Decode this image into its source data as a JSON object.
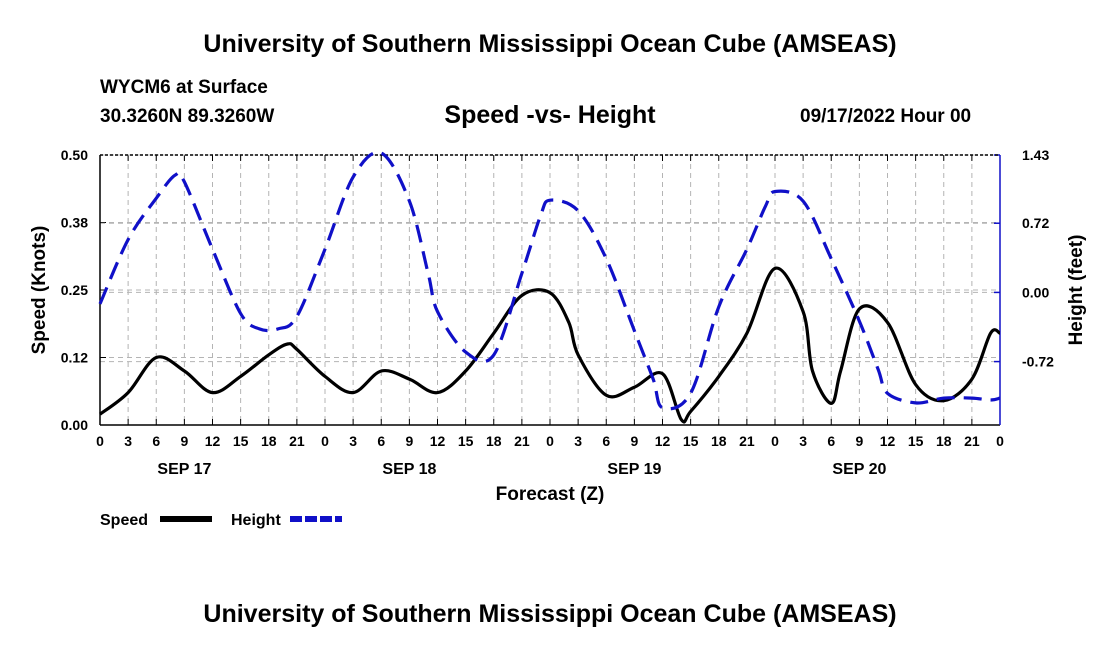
{
  "header": {
    "title": "University of Southern Mississippi Ocean Cube (AMSEAS)",
    "station": "WYCM6 at Surface",
    "coords": "30.3260N  89.3260W",
    "subtitle": "Speed -vs- Height",
    "datetime": "09/17/2022 Hour 00"
  },
  "footer": {
    "title": "University of Southern Mississippi Ocean Cube (AMSEAS)"
  },
  "colors": {
    "speed": "#000000",
    "height": "#1010c8",
    "grid": "#b4b4b4"
  },
  "chart_data": {
    "type": "line",
    "title": "Speed -vs- Height",
    "xlabel": "Forecast (Z)",
    "ylabel": "Speed (Knots)",
    "y2label": "Height (feet)",
    "xlim": [
      0,
      96
    ],
    "ylim": [
      0,
      0.5
    ],
    "y2lim": [
      -1.38,
      1.43
    ],
    "x_ticks": [
      0,
      3,
      6,
      9,
      12,
      15,
      18,
      21,
      24,
      27,
      30,
      33,
      36,
      39,
      42,
      45,
      48,
      51,
      54,
      57,
      60,
      63,
      66,
      69,
      72,
      75,
      78,
      81,
      84,
      87,
      90,
      93,
      96
    ],
    "x_tick_labels": [
      "0",
      "3",
      "6",
      "9",
      "12",
      "15",
      "18",
      "21",
      "0",
      "3",
      "6",
      "9",
      "12",
      "15",
      "18",
      "21",
      "0",
      "3",
      "6",
      "9",
      "12",
      "15",
      "18",
      "21",
      "0",
      "3",
      "6",
      "9",
      "12",
      "15",
      "18",
      "21",
      "0"
    ],
    "y_ticks": [
      0.0,
      0.125,
      0.25,
      0.375,
      0.5
    ],
    "y_tick_labels": [
      "0.00",
      "0.12",
      "0.25",
      "0.38",
      "0.50"
    ],
    "y2_ticks": [
      1.43,
      0.72,
      0.0,
      -0.72
    ],
    "y2_tick_labels": [
      "1.43",
      "0.72",
      "0.00",
      "-0.72"
    ],
    "day_labels": [
      {
        "x": 9,
        "label": "SEP 17"
      },
      {
        "x": 33,
        "label": "SEP 18"
      },
      {
        "x": 57,
        "label": "SEP 19"
      },
      {
        "x": 81,
        "label": "SEP 20"
      }
    ],
    "series": [
      {
        "name": "Speed",
        "axis": "left",
        "style": "solid",
        "x": [
          0,
          3,
          6,
          9,
          12,
          15,
          18,
          20,
          21,
          24,
          27,
          30,
          33,
          36,
          39,
          42,
          45,
          48,
          50,
          51,
          54,
          57,
          60,
          62,
          63,
          66,
          69,
          72,
          75,
          76,
          78,
          79,
          81,
          84,
          87,
          90,
          93,
          95,
          96
        ],
        "values": [
          0.02,
          0.06,
          0.125,
          0.1,
          0.06,
          0.09,
          0.13,
          0.15,
          0.14,
          0.09,
          0.06,
          0.1,
          0.085,
          0.06,
          0.1,
          0.17,
          0.24,
          0.245,
          0.19,
          0.13,
          0.055,
          0.07,
          0.095,
          0.01,
          0.025,
          0.09,
          0.17,
          0.29,
          0.21,
          0.1,
          0.04,
          0.1,
          0.215,
          0.19,
          0.075,
          0.045,
          0.085,
          0.17,
          0.17
        ]
      },
      {
        "name": "Height",
        "axis": "right",
        "style": "dashed",
        "x": [
          0,
          3,
          6,
          8,
          9,
          12,
          15,
          17,
          19,
          21,
          24,
          27,
          30,
          33,
          35,
          36,
          39,
          42,
          45,
          47,
          48,
          51,
          54,
          57,
          59,
          60,
          63,
          66,
          69,
          71,
          72,
          75,
          78,
          81,
          83,
          84,
          87,
          90,
          93,
          95,
          96
        ],
        "values": [
          -0.12,
          0.55,
          0.98,
          1.22,
          1.15,
          0.45,
          -0.22,
          -0.38,
          -0.38,
          -0.25,
          0.45,
          1.2,
          1.45,
          0.95,
          0.2,
          -0.2,
          -0.62,
          -0.65,
          0.2,
          0.8,
          0.96,
          0.85,
          0.35,
          -0.4,
          -0.9,
          -1.2,
          -1.05,
          -0.15,
          0.45,
          0.9,
          1.05,
          0.95,
          0.35,
          -0.3,
          -0.8,
          -1.05,
          -1.15,
          -1.1,
          -1.1,
          -1.12,
          -1.1
        ]
      }
    ],
    "legend": [
      {
        "label": "Speed",
        "style": "solid"
      },
      {
        "label": "Height",
        "style": "dashed"
      }
    ],
    "grid": true,
    "legend_position": "bottom-left"
  }
}
